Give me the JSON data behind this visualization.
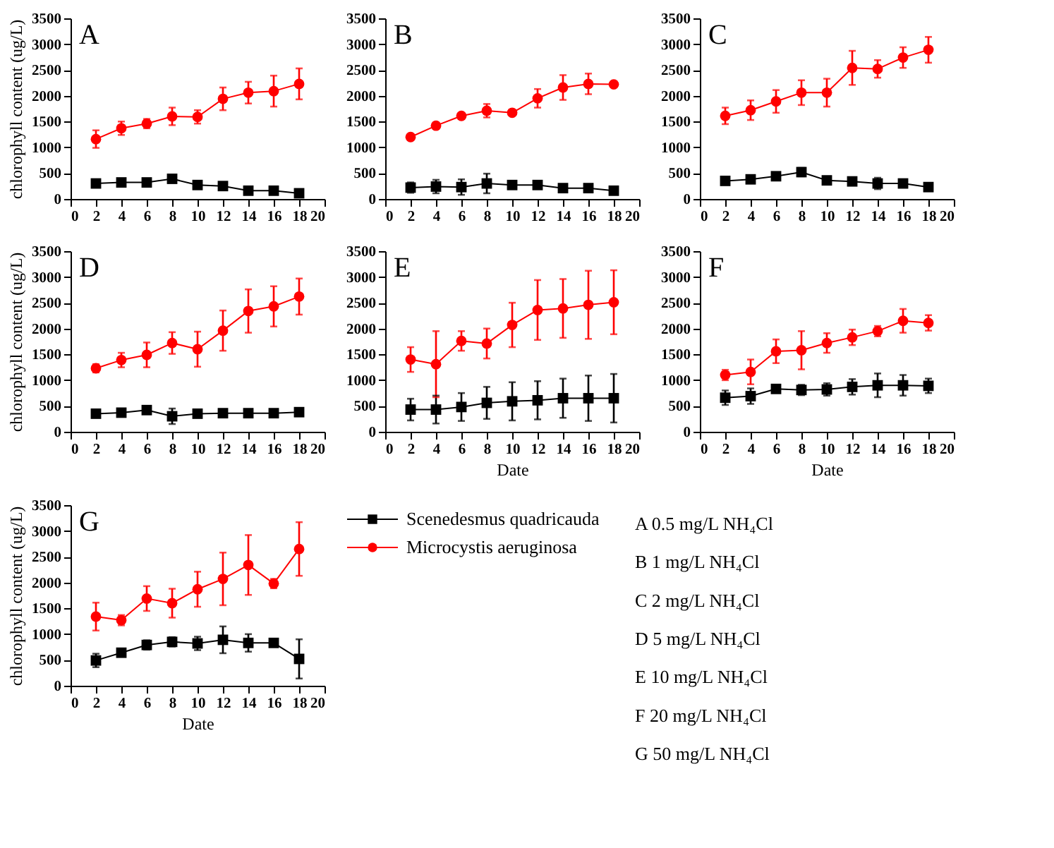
{
  "chart_data": [
    {
      "type": "line",
      "title": "A",
      "ylabel": "chlorophyll content (ug/L)",
      "x": [
        2,
        4,
        6,
        8,
        10,
        12,
        14,
        16,
        18
      ],
      "xlim": [
        0,
        20
      ],
      "xticks": [
        0,
        2,
        4,
        6,
        8,
        10,
        12,
        14,
        16,
        18,
        20
      ],
      "ylim": [
        0,
        3500
      ],
      "yticks": [
        0,
        500,
        1000,
        1500,
        2000,
        2500,
        3000,
        3500
      ],
      "grid": false,
      "line_style": "solid",
      "series": [
        {
          "color": "#000000",
          "marker": "square",
          "values": [
            300,
            320,
            320,
            390,
            270,
            250,
            160,
            160,
            110
          ]
        },
        {
          "color": "#ff0000",
          "marker": "circle",
          "values": [
            1160,
            1370,
            1460,
            1600,
            1590,
            1940,
            2060,
            2090,
            2230
          ],
          "errors": [
            170,
            130,
            90,
            170,
            130,
            220,
            210,
            300,
            300
          ]
        }
      ]
    },
    {
      "type": "line",
      "title": "B",
      "x": [
        2,
        4,
        6,
        8,
        10,
        12,
        14,
        16,
        18
      ],
      "xlim": [
        0,
        20
      ],
      "xticks": [
        0,
        2,
        4,
        6,
        8,
        10,
        12,
        14,
        16,
        18,
        20
      ],
      "ylim": [
        0,
        3500
      ],
      "yticks": [
        0,
        500,
        1000,
        1500,
        2000,
        2500,
        3000,
        3500
      ],
      "grid": false,
      "line_style": "solid",
      "series": [
        {
          "color": "#000000",
          "marker": "square",
          "values": [
            220,
            240,
            230,
            300,
            270,
            270,
            210,
            210,
            160
          ],
          "errors": [
            100,
            130,
            150,
            190,
            50,
            60,
            40,
            70,
            30
          ]
        },
        {
          "color": "#ff0000",
          "marker": "circle",
          "values": [
            1200,
            1420,
            1610,
            1710,
            1670,
            1950,
            2160,
            2230,
            2220
          ],
          "errors": [
            50,
            60,
            40,
            130,
            40,
            180,
            240,
            200,
            30
          ]
        }
      ]
    },
    {
      "type": "line",
      "title": "C",
      "x": [
        2,
        4,
        6,
        8,
        10,
        12,
        14,
        16,
        18
      ],
      "xlim": [
        0,
        20
      ],
      "xticks": [
        0,
        2,
        4,
        6,
        8,
        10,
        12,
        14,
        16,
        18,
        20
      ],
      "ylim": [
        0,
        3500
      ],
      "yticks": [
        0,
        500,
        1000,
        1500,
        2000,
        2500,
        3000,
        3500
      ],
      "grid": false,
      "line_style": "solid",
      "series": [
        {
          "color": "#000000",
          "marker": "square",
          "values": [
            350,
            380,
            440,
            520,
            360,
            340,
            300,
            300,
            230
          ],
          "errors": [
            null,
            null,
            null,
            80,
            null,
            null,
            110,
            null,
            null
          ]
        },
        {
          "color": "#ff0000",
          "marker": "circle",
          "values": [
            1610,
            1720,
            1890,
            2060,
            2060,
            2540,
            2520,
            2740,
            2890
          ],
          "errors": [
            160,
            190,
            220,
            240,
            270,
            330,
            170,
            200,
            250
          ]
        }
      ]
    },
    {
      "type": "line",
      "title": "D",
      "ylabel": "chlorophyll content (ug/L)",
      "x": [
        2,
        4,
        6,
        8,
        10,
        12,
        14,
        16,
        18
      ],
      "xlim": [
        0,
        20
      ],
      "xticks": [
        0,
        2,
        4,
        6,
        8,
        10,
        12,
        14,
        16,
        18,
        20
      ],
      "ylim": [
        0,
        3500
      ],
      "yticks": [
        0,
        500,
        1000,
        1500,
        2000,
        2500,
        3000,
        3500
      ],
      "grid": false,
      "line_style": "solid",
      "series": [
        {
          "color": "#000000",
          "marker": "square",
          "values": [
            350,
            370,
            420,
            300,
            350,
            360,
            360,
            360,
            380
          ],
          "errors": [
            null,
            null,
            null,
            150,
            null,
            null,
            null,
            null,
            null
          ]
        },
        {
          "color": "#ff0000",
          "marker": "circle",
          "values": [
            1230,
            1390,
            1490,
            1720,
            1600,
            1960,
            2340,
            2430,
            2620
          ],
          "errors": [
            80,
            140,
            240,
            210,
            340,
            390,
            420,
            390,
            350
          ]
        }
      ]
    },
    {
      "type": "line",
      "title": "E",
      "xlabel": "Date",
      "x": [
        2,
        4,
        6,
        8,
        10,
        12,
        14,
        16,
        18
      ],
      "xlim": [
        0,
        20
      ],
      "xticks": [
        0,
        2,
        4,
        6,
        8,
        10,
        12,
        14,
        16,
        18,
        20
      ],
      "ylim": [
        0,
        3500
      ],
      "yticks": [
        0,
        500,
        1000,
        1500,
        2000,
        2500,
        3000,
        3500
      ],
      "grid": false,
      "line_style": "solid",
      "series": [
        {
          "color": "#000000",
          "marker": "square",
          "values": [
            430,
            430,
            480,
            560,
            590,
            610,
            650,
            650,
            650
          ],
          "errors": [
            210,
            270,
            270,
            310,
            370,
            370,
            380,
            440,
            470
          ]
        },
        {
          "color": "#ff0000",
          "marker": "circle",
          "values": [
            1400,
            1310,
            1760,
            1710,
            2070,
            2360,
            2390,
            2460,
            2510
          ],
          "errors": [
            240,
            640,
            190,
            290,
            430,
            580,
            570,
            660,
            620
          ]
        }
      ]
    },
    {
      "type": "line",
      "title": "F",
      "xlabel": "Date",
      "x": [
        2,
        4,
        6,
        8,
        10,
        12,
        14,
        16,
        18
      ],
      "xlim": [
        0,
        20
      ],
      "xticks": [
        0,
        2,
        4,
        6,
        8,
        10,
        12,
        14,
        16,
        18,
        20
      ],
      "ylim": [
        0,
        3500
      ],
      "yticks": [
        0,
        500,
        1000,
        1500,
        2000,
        2500,
        3000,
        3500
      ],
      "grid": false,
      "line_style": "solid",
      "series": [
        {
          "color": "#000000",
          "marker": "square",
          "values": [
            660,
            690,
            830,
            810,
            820,
            870,
            900,
            900,
            890
          ],
          "errors": [
            140,
            150,
            40,
            100,
            120,
            150,
            230,
            200,
            140
          ]
        },
        {
          "color": "#ff0000",
          "marker": "circle",
          "values": [
            1100,
            1160,
            1560,
            1580,
            1720,
            1830,
            1950,
            2150,
            2110
          ],
          "errors": [
            100,
            240,
            230,
            370,
            190,
            150,
            100,
            230,
            150
          ]
        }
      ]
    },
    {
      "type": "line",
      "title": "G",
      "xlabel": "Date",
      "ylabel": "chlorophyll content (ug/L)",
      "x": [
        2,
        4,
        6,
        8,
        10,
        12,
        14,
        16,
        18
      ],
      "xlim": [
        0,
        20
      ],
      "xticks": [
        0,
        2,
        4,
        6,
        8,
        10,
        12,
        14,
        16,
        18,
        20
      ],
      "ylim": [
        0,
        3500
      ],
      "yticks": [
        0,
        500,
        1000,
        1500,
        2000,
        2500,
        3000,
        3500
      ],
      "grid": false,
      "legend": "right",
      "line_style": "solid",
      "series": [
        {
          "name": "Scenedesmus quadricauda",
          "color": "#000000",
          "marker": "square",
          "values": [
            490,
            640,
            790,
            850,
            820,
            890,
            830,
            830,
            520
          ],
          "errors": [
            130,
            30,
            90,
            90,
            130,
            260,
            170,
            60,
            380
          ]
        },
        {
          "name": "Microcystis aeruginosa",
          "color": "#ff0000",
          "marker": "circle",
          "values": [
            1340,
            1270,
            1690,
            1600,
            1870,
            2070,
            2340,
            1980,
            2650
          ],
          "errors": [
            270,
            100,
            240,
            280,
            340,
            510,
            580,
            90,
            520
          ]
        }
      ]
    },
    {
      "type": "other",
      "annotations": [
        "A 0.5 mg/L NH₄Cl",
        "B 1 mg/L NH₄Cl",
        "C 2 mg/L NH₄Cl",
        "D 5 mg/L NH₄Cl",
        "E 10 mg/L NH₄Cl",
        "F 20 mg/L NH₄Cl",
        "G 50 mg/L NH₄Cl"
      ]
    }
  ]
}
